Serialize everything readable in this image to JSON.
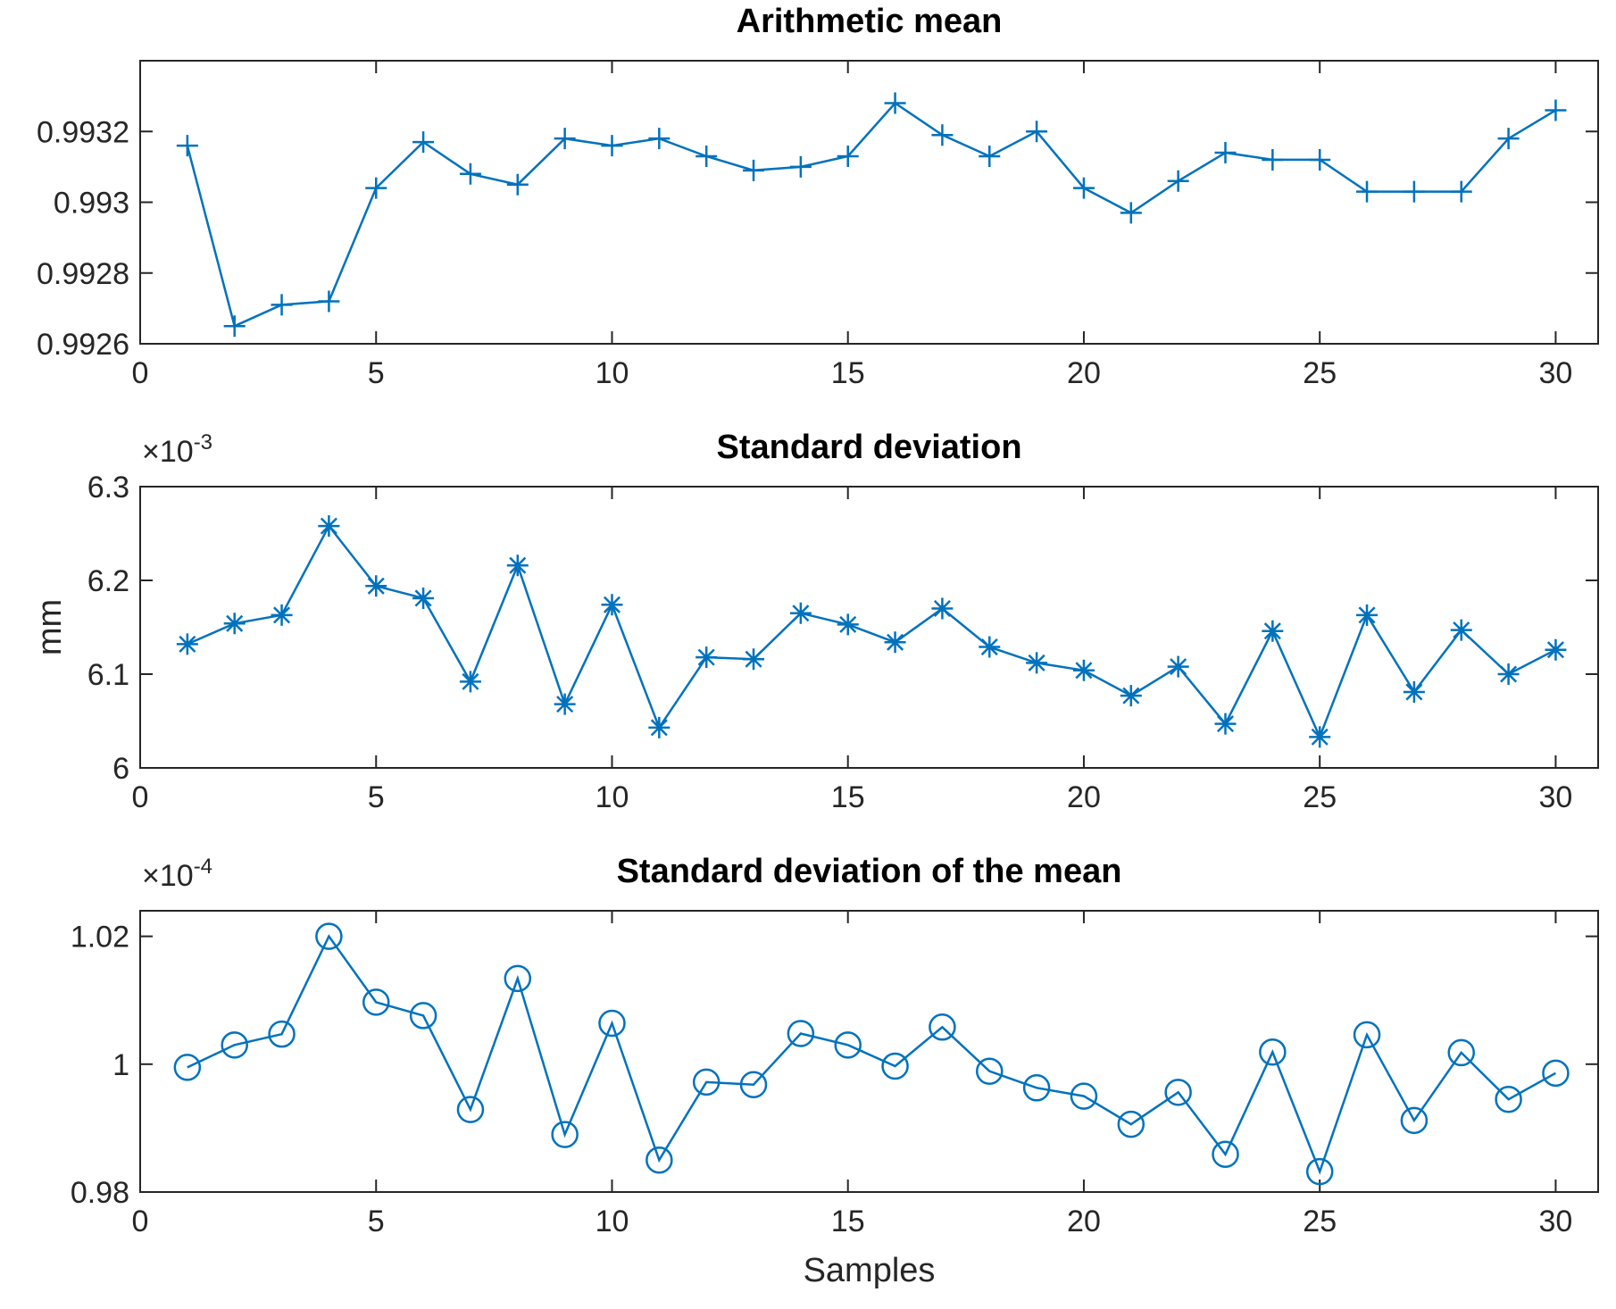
{
  "chart_data": [
    {
      "type": "line",
      "title": "Arithmetic mean",
      "xlabel": "",
      "ylabel": "",
      "exponent_label": null,
      "marker": "plus",
      "color": "#0072BD",
      "xlim": [
        0,
        30.9
      ],
      "ylim": [
        0.9926,
        0.9934
      ],
      "xticks": [
        0,
        5,
        10,
        15,
        20,
        25,
        30
      ],
      "xtick_labels": [
        "0",
        "5",
        "10",
        "15",
        "20",
        "25",
        "30"
      ],
      "yticks": [
        0.9926,
        0.9928,
        0.993,
        0.9932
      ],
      "ytick_labels": [
        "0.9926",
        "0.9928",
        "0.993",
        "0.9932"
      ],
      "x": [
        1,
        2,
        3,
        4,
        5,
        6,
        7,
        8,
        9,
        10,
        11,
        12,
        13,
        14,
        15,
        16,
        17,
        18,
        19,
        20,
        21,
        22,
        23,
        24,
        25,
        26,
        27,
        28,
        29,
        30
      ],
      "values": [
        0.99316,
        0.99265,
        0.99271,
        0.99272,
        0.99304,
        0.99317,
        0.99308,
        0.99305,
        0.99318,
        0.99316,
        0.99318,
        0.99313,
        0.99309,
        0.9931,
        0.99313,
        0.99328,
        0.99319,
        0.99313,
        0.9932,
        0.99304,
        0.99297,
        0.99306,
        0.99314,
        0.99312,
        0.99312,
        0.99303,
        0.99303,
        0.99303,
        0.99318,
        0.99326
      ]
    },
    {
      "type": "line",
      "title": "Standard deviation",
      "xlabel": "",
      "ylabel": "mm",
      "exponent_label": {
        "base": "×10",
        "power": "-3"
      },
      "marker": "star",
      "color": "#0072BD",
      "xlim": [
        0,
        30.9
      ],
      "ylim": [
        6.0,
        6.3
      ],
      "xticks": [
        0,
        5,
        10,
        15,
        20,
        25,
        30
      ],
      "xtick_labels": [
        "0",
        "5",
        "10",
        "15",
        "20",
        "25",
        "30"
      ],
      "yticks": [
        6.0,
        6.1,
        6.2,
        6.3
      ],
      "ytick_labels": [
        "6",
        "6.1",
        "6.2",
        "6.3"
      ],
      "x": [
        1,
        2,
        3,
        4,
        5,
        6,
        7,
        8,
        9,
        10,
        11,
        12,
        13,
        14,
        15,
        16,
        17,
        18,
        19,
        20,
        21,
        22,
        23,
        24,
        25,
        26,
        27,
        28,
        29,
        30
      ],
      "values": [
        6.132,
        6.154,
        6.163,
        6.258,
        6.194,
        6.181,
        6.092,
        6.216,
        6.068,
        6.174,
        6.043,
        6.118,
        6.116,
        6.165,
        6.153,
        6.134,
        6.17,
        6.129,
        6.112,
        6.104,
        6.077,
        6.108,
        6.047,
        6.146,
        6.033,
        6.163,
        6.081,
        6.147,
        6.1,
        6.126
      ]
    },
    {
      "type": "line",
      "title": "Standard deviation of the mean",
      "xlabel": "Samples",
      "ylabel": "",
      "exponent_label": {
        "base": "×10",
        "power": "-4"
      },
      "marker": "circle",
      "color": "#0072BD",
      "xlim": [
        0,
        30.9
      ],
      "ylim": [
        0.98,
        1.024
      ],
      "xticks": [
        0,
        5,
        10,
        15,
        20,
        25,
        30
      ],
      "xtick_labels": [
        "0",
        "5",
        "10",
        "15",
        "20",
        "25",
        "30"
      ],
      "yticks": [
        0.98,
        1.0,
        1.02
      ],
      "ytick_labels": [
        "0.98",
        "1",
        "1.02"
      ],
      "x": [
        1,
        2,
        3,
        4,
        5,
        6,
        7,
        8,
        9,
        10,
        11,
        12,
        13,
        14,
        15,
        16,
        17,
        18,
        19,
        20,
        21,
        22,
        23,
        24,
        25,
        26,
        27,
        28,
        29,
        30
      ],
      "values": [
        0.9995,
        1.003,
        1.0047,
        1.02,
        1.0097,
        1.0076,
        0.9929,
        1.0134,
        0.989,
        1.0064,
        0.985,
        0.9972,
        0.9968,
        1.0048,
        1.003,
        0.9997,
        1.0058,
        0.9989,
        0.9963,
        0.995,
        0.9906,
        0.9956,
        0.9859,
        1.0019,
        0.9832,
        1.0046,
        0.9912,
        1.0018,
        0.9945,
        0.9986
      ]
    }
  ]
}
